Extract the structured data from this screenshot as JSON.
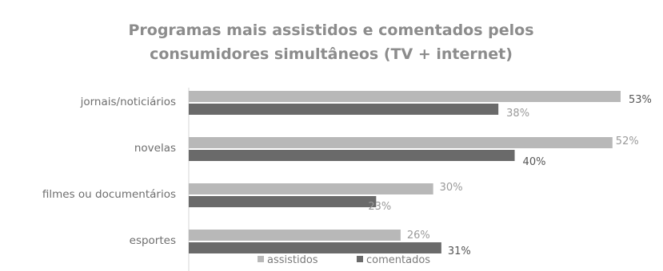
{
  "chart_data": {
    "type": "bar",
    "orientation": "horizontal",
    "title": "Programas mais assistidos e comentados pelos consumidores simultâneos (TV + internet)",
    "title_lines": [
      "Programas mais assistidos e comentados pelos",
      "consumidores simultâneos (TV + internet)"
    ],
    "categories": [
      "jornais/noticiários",
      "novelas",
      "filmes ou documentários",
      "esportes"
    ],
    "series": [
      {
        "name": "assistidos",
        "values": [
          53,
          52,
          30,
          26
        ],
        "labels": [
          "53%",
          "52%",
          "30%",
          "26%"
        ],
        "color": "#b8b8b8"
      },
      {
        "name": "comentados",
        "values": [
          38,
          40,
          23,
          31
        ],
        "labels": [
          "38%",
          "40%",
          "23%",
          "31%"
        ],
        "color": "#6a6a6a"
      }
    ],
    "xlim": [
      0,
      53
    ],
    "grid": false,
    "legend_position": "bottom-center",
    "xlabel": "",
    "ylabel": ""
  }
}
